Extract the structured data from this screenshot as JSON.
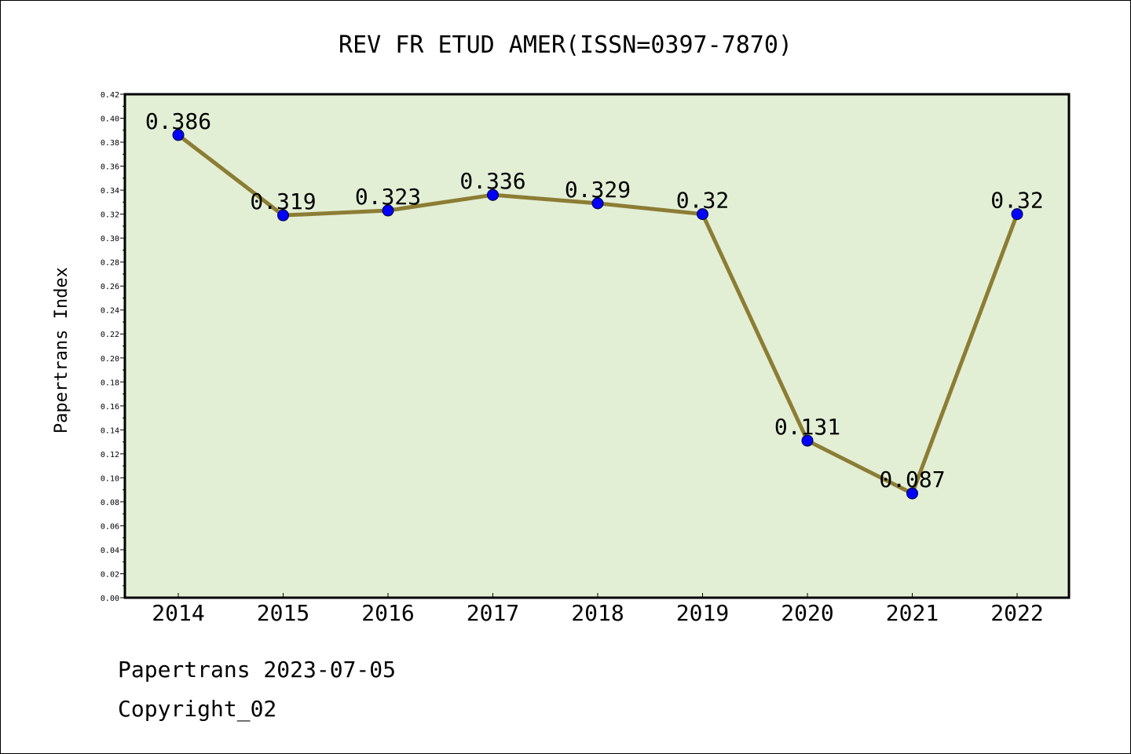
{
  "chart_data": {
    "type": "line",
    "title": "REV FR ETUD AMER(ISSN=0397-7870)",
    "xlabel": "",
    "ylabel": "Papertrans Index",
    "x": [
      "2014",
      "2015",
      "2016",
      "2017",
      "2018",
      "2019",
      "2020",
      "2021",
      "2022"
    ],
    "values": [
      0.386,
      0.319,
      0.323,
      0.336,
      0.329,
      0.32,
      0.131,
      0.087,
      0.32
    ],
    "data_labels": [
      "0.386",
      "0.319",
      "0.323",
      "0.336",
      "0.329",
      "0.32",
      "0.131",
      "0.087",
      "0.32"
    ],
    "ylim": [
      0,
      0.42
    ],
    "yticks": [
      "0.00",
      "0.02",
      "0.04",
      "0.06",
      "0.08",
      "0.10",
      "0.12",
      "0.14",
      "0.16",
      "0.18",
      "0.20",
      "0.22",
      "0.24",
      "0.26",
      "0.28",
      "0.30",
      "0.32",
      "0.34",
      "0.36",
      "0.38",
      "0.40",
      "0.42"
    ],
    "grid": false,
    "colors": {
      "plot_background": "#e2efd5",
      "line": "#8c7d34",
      "marker": "#0000ff"
    }
  },
  "footer": {
    "date_line": "Papertrans 2023-07-05",
    "copyright": "Copyright_02"
  }
}
